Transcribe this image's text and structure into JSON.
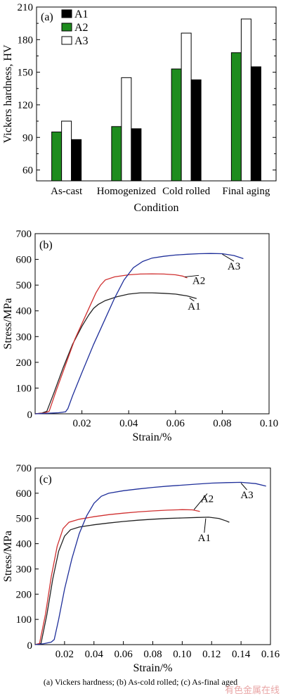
{
  "chart_data": [
    {
      "type": "bar",
      "panel_label": "(a)",
      "categories": [
        "As-cast",
        "Homogenized",
        "Cold rolled",
        "Final aging"
      ],
      "series": [
        {
          "name": "A1",
          "color": "#000000",
          "values": [
            88,
            98,
            143,
            155
          ]
        },
        {
          "name": "A2",
          "color": "#1e8c1e",
          "values": [
            95,
            100,
            153,
            168
          ]
        },
        {
          "name": "A3",
          "color": "#ffffff",
          "values": [
            105,
            145,
            186,
            199
          ]
        }
      ],
      "bar_order": [
        "A2",
        "A3",
        "A1"
      ],
      "xlabel": "Condition",
      "ylabel": "Vickers hardness, HV",
      "ylim": [
        50,
        210
      ],
      "yticks": [
        "60",
        "90",
        "120",
        "150",
        "180",
        "210"
      ],
      "legend_position": "top-left",
      "grid": false
    },
    {
      "type": "line",
      "panel_label": "(b)",
      "xlabel": "Strain/%",
      "ylabel": "Stress/MPa",
      "xlim": [
        0,
        0.1
      ],
      "ylim": [
        0,
        700
      ],
      "xticks": [
        "0",
        "0.02",
        "0.04",
        "0.06",
        "0.08",
        "0.10"
      ],
      "yticks": [
        "100",
        "200",
        "300",
        "400",
        "500",
        "600",
        "700"
      ],
      "grid": false,
      "series": [
        {
          "name": "A1",
          "color": "#222222",
          "points": [
            [
              0.0,
              0
            ],
            [
              0.003,
              3
            ],
            [
              0.005,
              10
            ],
            [
              0.008,
              80
            ],
            [
              0.012,
              180
            ],
            [
              0.016,
              270
            ],
            [
              0.02,
              340
            ],
            [
              0.023,
              385
            ],
            [
              0.025,
              410
            ],
            [
              0.027,
              425
            ],
            [
              0.03,
              440
            ],
            [
              0.035,
              455
            ],
            [
              0.04,
              465
            ],
            [
              0.045,
              470
            ],
            [
              0.05,
              470
            ],
            [
              0.055,
              468
            ],
            [
              0.06,
              465
            ],
            [
              0.065,
              458
            ],
            [
              0.069,
              448
            ]
          ]
        },
        {
          "name": "A2",
          "color": "#d03030",
          "points": [
            [
              0.0,
              0
            ],
            [
              0.004,
              3
            ],
            [
              0.006,
              10
            ],
            [
              0.009,
              90
            ],
            [
              0.013,
              190
            ],
            [
              0.017,
              290
            ],
            [
              0.021,
              370
            ],
            [
              0.024,
              430
            ],
            [
              0.026,
              470
            ],
            [
              0.028,
              500
            ],
            [
              0.03,
              520
            ],
            [
              0.034,
              532
            ],
            [
              0.04,
              540
            ],
            [
              0.045,
              543
            ],
            [
              0.05,
              544
            ],
            [
              0.055,
              543
            ],
            [
              0.06,
              540
            ],
            [
              0.063,
              535
            ],
            [
              0.065,
              528
            ]
          ]
        },
        {
          "name": "A3",
          "color": "#1f2f9a",
          "points": [
            [
              0.0,
              0
            ],
            [
              0.005,
              2
            ],
            [
              0.01,
              4
            ],
            [
              0.013,
              8
            ],
            [
              0.014,
              20
            ],
            [
              0.016,
              70
            ],
            [
              0.02,
              160
            ],
            [
              0.025,
              270
            ],
            [
              0.03,
              370
            ],
            [
              0.034,
              450
            ],
            [
              0.038,
              520
            ],
            [
              0.042,
              568
            ],
            [
              0.046,
              592
            ],
            [
              0.05,
              605
            ],
            [
              0.055,
              612
            ],
            [
              0.06,
              617
            ],
            [
              0.065,
              620
            ],
            [
              0.07,
              622
            ],
            [
              0.075,
              623
            ],
            [
              0.08,
              622
            ],
            [
              0.085,
              615
            ],
            [
              0.089,
              603
            ]
          ]
        }
      ]
    },
    {
      "type": "line",
      "panel_label": "(c)",
      "xlabel": "Strain/%",
      "ylabel": "Stress/MPa",
      "xlim": [
        0,
        0.16
      ],
      "ylim": [
        0,
        700
      ],
      "xticks": [
        "0",
        "0.02",
        "0.04",
        "0.06",
        "0.08",
        "0.10",
        "0.12",
        "0.14",
        "0.16"
      ],
      "yticks": [
        "100",
        "200",
        "300",
        "400",
        "500",
        "600",
        "700"
      ],
      "grid": false,
      "series": [
        {
          "name": "A1",
          "color": "#222222",
          "points": [
            [
              0.0,
              0
            ],
            [
              0.004,
              5
            ],
            [
              0.008,
              120
            ],
            [
              0.012,
              260
            ],
            [
              0.016,
              370
            ],
            [
              0.02,
              430
            ],
            [
              0.024,
              455
            ],
            [
              0.03,
              466
            ],
            [
              0.04,
              475
            ],
            [
              0.05,
              482
            ],
            [
              0.06,
              488
            ],
            [
              0.07,
              493
            ],
            [
              0.08,
              497
            ],
            [
              0.09,
              500
            ],
            [
              0.1,
              502
            ],
            [
              0.11,
              504
            ],
            [
              0.118,
              505
            ],
            [
              0.125,
              500
            ],
            [
              0.13,
              490
            ],
            [
              0.132,
              485
            ]
          ]
        },
        {
          "name": "A2",
          "color": "#d03030",
          "points": [
            [
              0.0,
              0
            ],
            [
              0.003,
              5
            ],
            [
              0.007,
              120
            ],
            [
              0.011,
              270
            ],
            [
              0.015,
              390
            ],
            [
              0.019,
              460
            ],
            [
              0.023,
              485
            ],
            [
              0.03,
              497
            ],
            [
              0.04,
              507
            ],
            [
              0.05,
              515
            ],
            [
              0.06,
              521
            ],
            [
              0.07,
              526
            ],
            [
              0.08,
              530
            ],
            [
              0.09,
              533
            ],
            [
              0.1,
              535
            ],
            [
              0.107,
              534
            ],
            [
              0.112,
              528
            ]
          ]
        },
        {
          "name": "A3",
          "color": "#1f2f9a",
          "points": [
            [
              0.0,
              0
            ],
            [
              0.006,
              4
            ],
            [
              0.011,
              10
            ],
            [
              0.013,
              20
            ],
            [
              0.016,
              100
            ],
            [
              0.02,
              220
            ],
            [
              0.025,
              340
            ],
            [
              0.03,
              440
            ],
            [
              0.035,
              510
            ],
            [
              0.04,
              560
            ],
            [
              0.045,
              588
            ],
            [
              0.05,
              600
            ],
            [
              0.06,
              610
            ],
            [
              0.07,
              617
            ],
            [
              0.08,
              623
            ],
            [
              0.09,
              628
            ],
            [
              0.1,
              632
            ],
            [
              0.11,
              636
            ],
            [
              0.12,
              640
            ],
            [
              0.13,
              642
            ],
            [
              0.14,
              643
            ],
            [
              0.15,
              638
            ],
            [
              0.157,
              628
            ]
          ]
        }
      ]
    }
  ],
  "caption": "(a) Vickers hardness; (b) As-cold rolled; (c) As-final aged",
  "watermark": "有色金属在线"
}
